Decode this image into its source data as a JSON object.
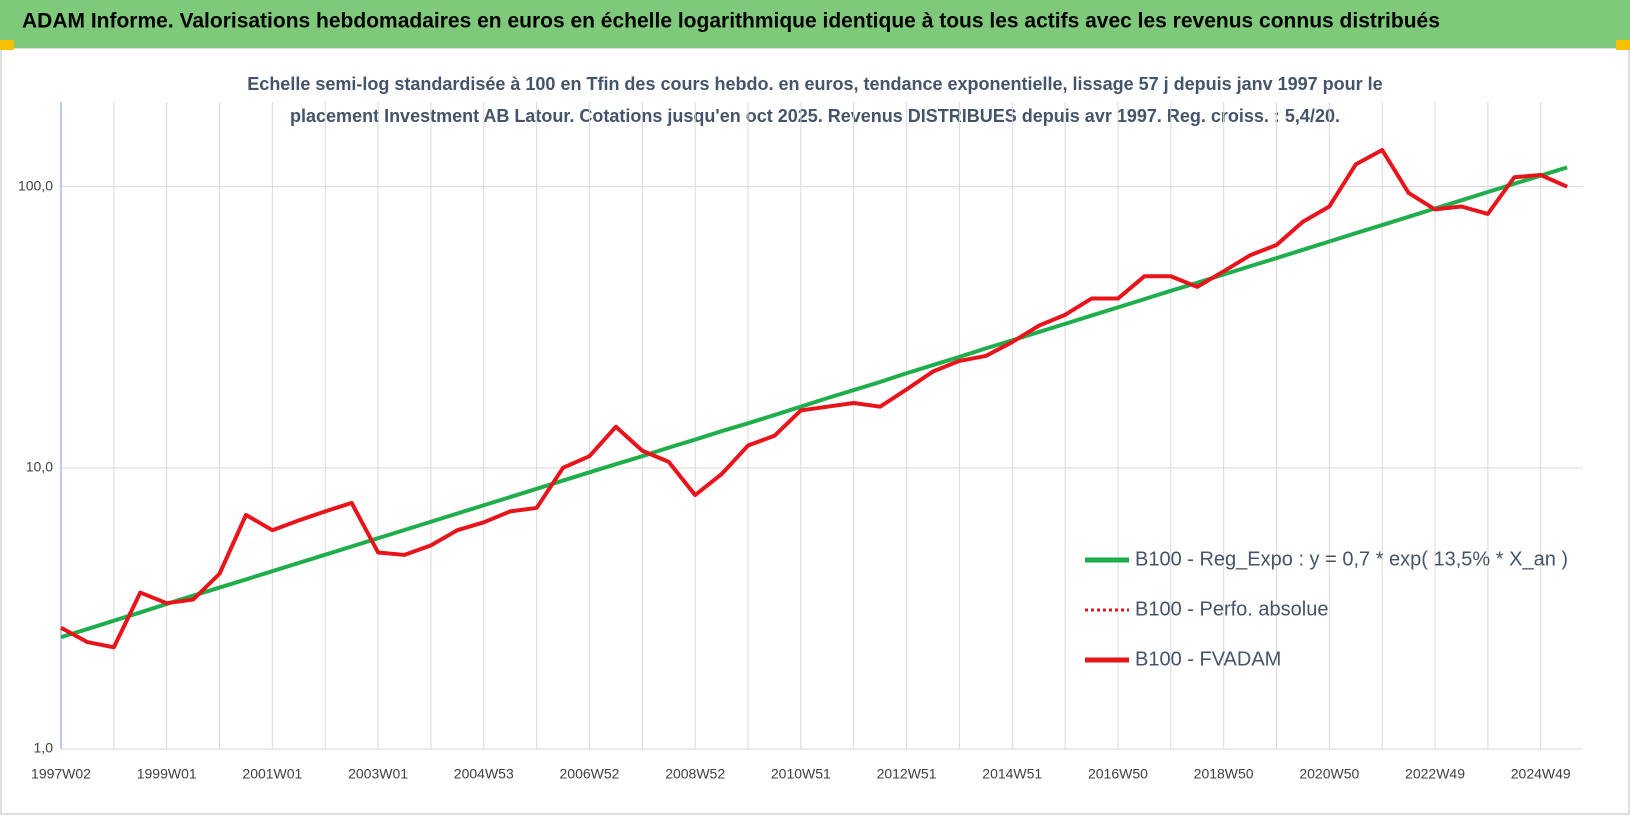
{
  "chart_data": {
    "type": "line",
    "title": "ADAM Informe. Valorisations hebdomadaires en euros en échelle logarithmique identique à tous les actifs avec les revenus connus distribués",
    "subtitle": [
      "Echelle semi-log standardisée à 100 en Tfin des cours hebdo. en euros, tendance exponentielle, lissage 57 j depuis janv 1997 pour le",
      "placement Investment AB Latour. Cotations jusqu'en oct 2025. Revenus DISTRIBUES depuis avr 1997. Reg. croiss. : 5,4/20."
    ],
    "categories": [
      "1997W02",
      null,
      null,
      null,
      "1999W01",
      null,
      null,
      null,
      "2001W01",
      null,
      null,
      null,
      "2003W01",
      null,
      null,
      null,
      "2004W53",
      null,
      null,
      null,
      "2006W52",
      null,
      null,
      null,
      "2008W52",
      null,
      null,
      null,
      "2010W51",
      null,
      null,
      null,
      "2012W51",
      null,
      null,
      null,
      "2014W51",
      null,
      null,
      null,
      "2016W50",
      null,
      null,
      null,
      "2018W50",
      null,
      null,
      null,
      "2020W50",
      null,
      null,
      null,
      "2022W49",
      null,
      null,
      null,
      "2024W49",
      null
    ],
    "series": [
      {
        "name": "B100 - Reg_Expo : y = 0,7 * exp( 13,5% *  X_an )",
        "color": "#1fae4b",
        "dash": "solid",
        "values": [
          2.5,
          2.67,
          2.86,
          3.06,
          3.28,
          3.51,
          3.75,
          4.01,
          4.29,
          4.59,
          4.91,
          5.25,
          5.62,
          6.01,
          6.43,
          6.88,
          7.36,
          7.87,
          8.42,
          9.01,
          9.64,
          10.3,
          11.0,
          11.8,
          12.6,
          13.5,
          14.4,
          15.4,
          16.5,
          17.7,
          18.9,
          20.2,
          21.7,
          23.2,
          24.8,
          26.6,
          28.4,
          30.4,
          32.5,
          34.8,
          37.2,
          39.8,
          42.6,
          45.5,
          48.7,
          52.1,
          55.7,
          59.6,
          63.8,
          68.3,
          73.0,
          78.1,
          83.6,
          89.4,
          95.7,
          102.4,
          109.5,
          117.1
        ]
      },
      {
        "name": "B100 - Perfo. absolue",
        "color": "#e8141b",
        "dash": "dotted",
        "values": [
          2.7,
          2.4,
          2.3,
          3.6,
          3.3,
          3.4,
          4.2,
          6.8,
          6.0,
          6.5,
          7.0,
          7.5,
          5.0,
          4.9,
          5.3,
          6.0,
          6.4,
          7.0,
          7.2,
          10.0,
          11.0,
          14.0,
          11.5,
          10.5,
          8.0,
          9.5,
          12.0,
          13.0,
          16.0,
          16.5,
          17.0,
          16.5,
          19.0,
          22.0,
          24.0,
          25.0,
          28.0,
          32.0,
          35.0,
          40.0,
          40.0,
          48.0,
          48.0,
          44.0,
          50.0,
          57.0,
          62.0,
          75.0,
          85.0,
          120.0,
          135.0,
          95.0,
          83.0,
          85.0,
          80.0,
          108.0,
          110.0,
          100.0
        ]
      },
      {
        "name": "B100 - FVADAM",
        "color": "#e8141b",
        "dash": "solid",
        "values": [
          2.7,
          2.4,
          2.3,
          3.6,
          3.3,
          3.4,
          4.2,
          6.8,
          6.0,
          6.5,
          7.0,
          7.5,
          5.0,
          4.9,
          5.3,
          6.0,
          6.4,
          7.0,
          7.2,
          10.0,
          11.0,
          14.0,
          11.5,
          10.5,
          8.0,
          9.5,
          12.0,
          13.0,
          16.0,
          16.5,
          17.0,
          16.5,
          19.0,
          22.0,
          24.0,
          25.0,
          28.0,
          32.0,
          35.0,
          40.0,
          40.0,
          48.0,
          48.0,
          44.0,
          50.0,
          57.0,
          62.0,
          75.0,
          85.0,
          120.0,
          135.0,
          95.0,
          83.0,
          85.0,
          80.0,
          108.0,
          110.0,
          100.0
        ]
      }
    ],
    "log_scale": true,
    "ylim": [
      1,
      200
    ],
    "yticks": [
      {
        "value": 1,
        "label": "1,0"
      },
      {
        "value": 10,
        "label": "10,0"
      },
      {
        "value": 100,
        "label": "100,0"
      }
    ],
    "grid": true,
    "legend": "right"
  }
}
